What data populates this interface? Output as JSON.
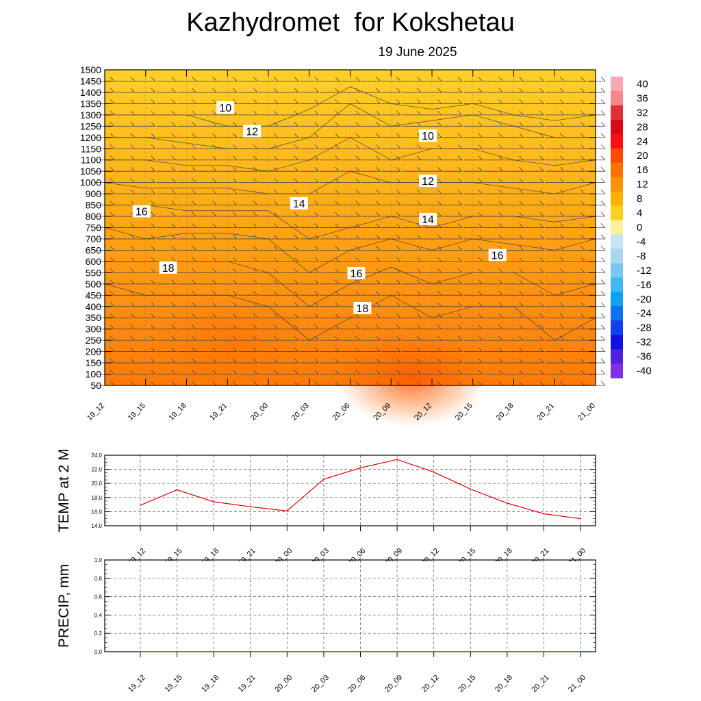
{
  "header": {
    "title": "Kazhydromet  for Kokshetau",
    "date": "19 June 2025"
  },
  "chart_data": [
    {
      "type": "heatmap",
      "name": "cross-section",
      "x_labels": [
        "19_12",
        "19_15",
        "19_18",
        "19_21",
        "20_00",
        "20_03",
        "20_06",
        "20_09",
        "20_12",
        "20_15",
        "20_18",
        "20_21",
        "21_00"
      ],
      "y_labels": [
        1500,
        1450,
        1400,
        1350,
        1300,
        1250,
        1200,
        1150,
        1100,
        1050,
        1000,
        900,
        850,
        800,
        750,
        700,
        650,
        600,
        550,
        500,
        450,
        400,
        350,
        300,
        250,
        200,
        150,
        100,
        50
      ],
      "colorbar_labels": [
        40,
        36,
        32,
        28,
        24,
        20,
        16,
        12,
        8,
        4,
        0,
        -4,
        -8,
        -12,
        -16,
        -20,
        -24,
        -28,
        -32,
        -36,
        -40
      ],
      "colorbar_colors": [
        "#f8a8b0",
        "#f4888c",
        "#e23038",
        "#d80818",
        "#f81010",
        "#ff4800",
        "#ff7000",
        "#ff9000",
        "#ffb000",
        "#ffd020",
        "#fff0a0",
        "#c8e4f4",
        "#a8d8f0",
        "#78c8f0",
        "#40b8f0",
        "#10a0f0",
        "#1070f0",
        "#1040f0",
        "#1010e0",
        "#5020e0",
        "#8030e8"
      ],
      "contour_labels": [
        {
          "text": "10",
          "x": 5.9,
          "level_index": 3.4
        },
        {
          "text": "10",
          "x": 15.8,
          "level_index": 5.9
        },
        {
          "text": "12",
          "x": 7.2,
          "level_index": 5.5
        },
        {
          "text": "12",
          "x": 15.8,
          "level_index": 9.9
        },
        {
          "text": "14",
          "x": 9.5,
          "level_index": 11.9
        },
        {
          "text": "14",
          "x": 15.8,
          "level_index": 13.3
        },
        {
          "text": "16",
          "x": 1.8,
          "level_index": 12.6
        },
        {
          "text": "16",
          "x": 19.2,
          "level_index": 16.5
        },
        {
          "text": "16",
          "x": 12.3,
          "level_index": 18.1
        },
        {
          "text": "18",
          "x": 3.1,
          "level_index": 17.6
        },
        {
          "text": "18",
          "x": 12.6,
          "level_index": 21.2
        }
      ]
    },
    {
      "type": "line",
      "ylabel": "TEMP at 2 M",
      "categories": [
        "19_12",
        "19_15",
        "19_18",
        "19_21",
        "20_00",
        "20_03",
        "20_06",
        "20_09",
        "20_12",
        "20_15",
        "20_18",
        "20_21",
        "21_00"
      ],
      "series": [
        {
          "values": [
            16.9,
            19.1,
            17.4,
            16.7,
            16.1,
            20.6,
            22.2,
            23.4,
            21.6,
            19.2,
            17.2,
            15.7,
            15.0
          ],
          "color": "#e00000"
        }
      ],
      "yticks": [
        "24.0",
        "22.0",
        "20.0",
        "18.0",
        "16.0",
        "14.0"
      ],
      "ylim": [
        14,
        24
      ]
    },
    {
      "type": "line",
      "ylabel": "PRECIP, mm",
      "categories": [
        "19_12",
        "19_15",
        "19_18",
        "19_21",
        "20_00",
        "20_03",
        "20_06",
        "20_09",
        "20_12",
        "20_15",
        "20_18",
        "20_21",
        "21_00"
      ],
      "series": [
        {
          "values": [
            0,
            0,
            0,
            0,
            0,
            0,
            0,
            0,
            0,
            0,
            0,
            0,
            0
          ],
          "color": "#008000"
        }
      ],
      "yticks": [
        "1.0",
        "0.8",
        "0.6",
        "0.4",
        "0.2",
        "0.0"
      ],
      "ylim": [
        0,
        1
      ]
    }
  ]
}
